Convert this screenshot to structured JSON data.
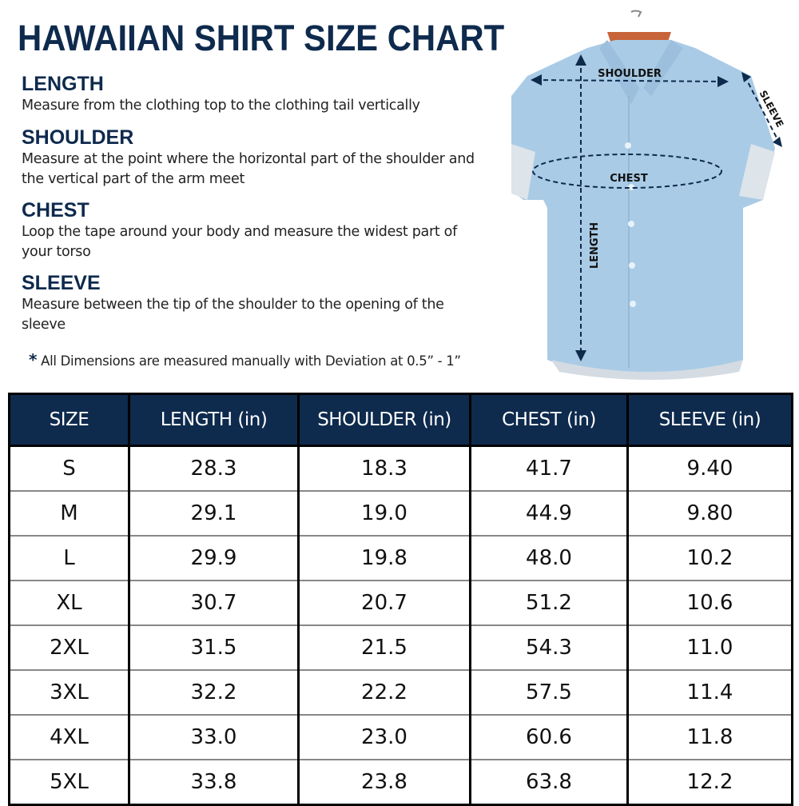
{
  "title": "HAWAIIAN SHIRT SIZE CHART",
  "sections": [
    {
      "heading": "LENGTH",
      "text": "Measure from the clothing top to the clothing tail vertically"
    },
    {
      "heading": "SHOULDER",
      "text": "Measure at the point where the horizontal part of the shoulder and the vertical part of the arm meet"
    },
    {
      "heading": "CHEST",
      "text": "Loop the tape around your body and measure the widest part of your torso"
    },
    {
      "heading": "SLEEVE",
      "text": "Measure between the tip of the shoulder to the opening of the sleeve"
    }
  ],
  "note": {
    "symbol": "*",
    "text": "All Dimensions are measured manually with Deviation at 0.5” - 1”"
  },
  "diagram_labels": {
    "shoulder": "SHOULDER",
    "chest": "CHEST",
    "length": "LENGTH",
    "sleeve": "SLEEVE"
  },
  "colors": {
    "navy": "#0e2a4d",
    "shirt": "#a9cbe6"
  },
  "table": {
    "headers": [
      "SIZE",
      "LENGTH (in)",
      "SHOULDER (in)",
      "CHEST (in)",
      "SLEEVE (in)"
    ],
    "rows": [
      [
        "S",
        "28.3",
        "18.3",
        "41.7",
        "9.40"
      ],
      [
        "M",
        "29.1",
        "19.0",
        "44.9",
        "9.80"
      ],
      [
        "L",
        "29.9",
        "19.8",
        "48.0",
        "10.2"
      ],
      [
        "XL",
        "30.7",
        "20.7",
        "51.2",
        "10.6"
      ],
      [
        "2XL",
        "31.5",
        "21.5",
        "54.3",
        "11.0"
      ],
      [
        "3XL",
        "32.2",
        "22.2",
        "57.5",
        "11.4"
      ],
      [
        "4XL",
        "33.0",
        "23.0",
        "60.6",
        "11.8"
      ],
      [
        "5XL",
        "33.8",
        "23.8",
        "63.8",
        "12.2"
      ]
    ]
  }
}
